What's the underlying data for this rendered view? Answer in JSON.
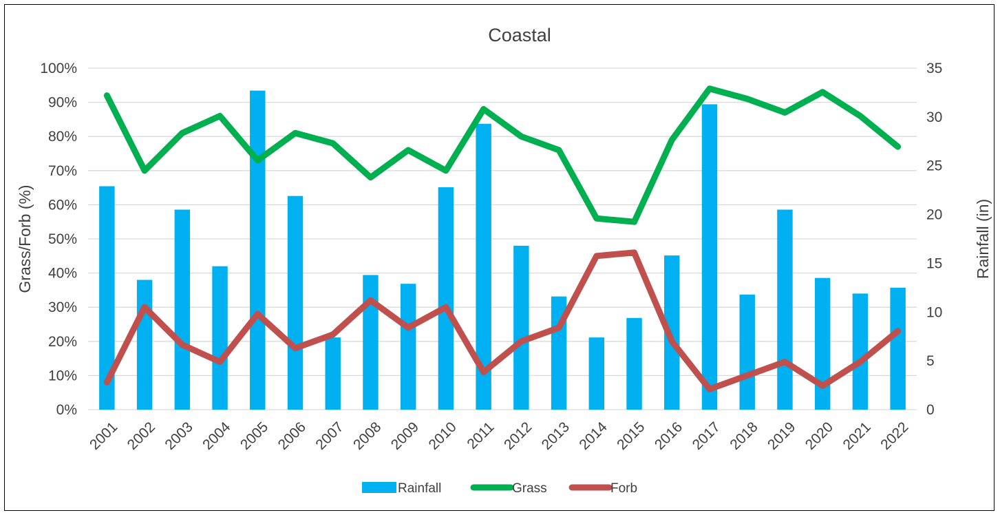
{
  "chart_data": {
    "type": "bar",
    "title": "Coastal",
    "categories": [
      "2001",
      "2002",
      "2003",
      "2004",
      "2005",
      "2006",
      "2007",
      "2008",
      "2009",
      "2010",
      "2011",
      "2012",
      "2013",
      "2014",
      "2015",
      "2016",
      "2017",
      "2018",
      "2019",
      "2020",
      "2021",
      "2022"
    ],
    "y_left": {
      "label": "Grass/Forb (%)",
      "range": [
        0,
        100
      ],
      "ticks": [
        "0%",
        "10%",
        "20%",
        "30%",
        "40%",
        "50%",
        "60%",
        "70%",
        "80%",
        "90%",
        "100%"
      ]
    },
    "y_right": {
      "label": "Rainfall (in)",
      "range": [
        0,
        35
      ],
      "ticks": [
        "0",
        "5",
        "10",
        "15",
        "20",
        "25",
        "30",
        "35"
      ]
    },
    "grid": true,
    "legend_position": "bottom",
    "series": [
      {
        "name": "Rainfall",
        "type": "bar",
        "axis": "right",
        "color": "#00b0f0",
        "values": [
          22.9,
          13.3,
          20.5,
          14.7,
          32.7,
          21.9,
          7.4,
          13.8,
          12.9,
          22.8,
          29.3,
          16.8,
          11.6,
          7.4,
          9.4,
          15.8,
          31.3,
          11.8,
          20.5,
          13.5,
          11.9,
          12.5
        ]
      },
      {
        "name": "Grass",
        "type": "line",
        "axis": "left",
        "color": "#00b050",
        "values": [
          92,
          70,
          81,
          86,
          73,
          81,
          78,
          68,
          76,
          70,
          88,
          80,
          76,
          56,
          55,
          79,
          94,
          91,
          87,
          93,
          86,
          77
        ]
      },
      {
        "name": "Forb",
        "type": "line",
        "axis": "left",
        "color": "#c0504d",
        "values": [
          8,
          30,
          19,
          14,
          28,
          18,
          22,
          32,
          24,
          30,
          11,
          20,
          24,
          45,
          46,
          20,
          6,
          10,
          14,
          7,
          14,
          23
        ]
      }
    ]
  }
}
